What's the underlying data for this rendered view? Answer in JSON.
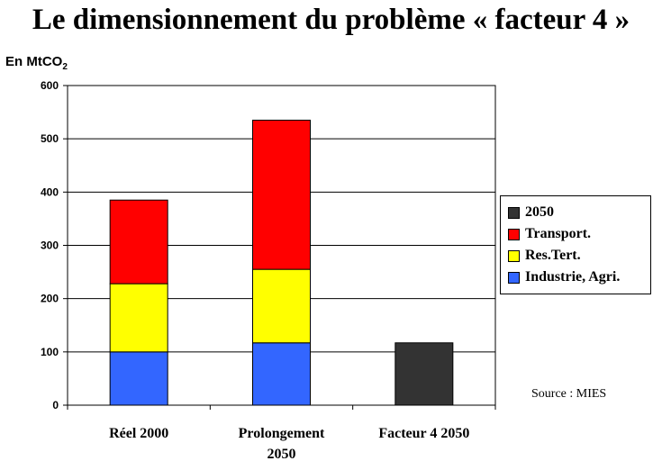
{
  "title": "Le dimensionnement du problème « facteur 4 »",
  "unit_label": "En MtCO",
  "unit_subscript": "2",
  "source": "Source : MIES",
  "colors": {
    "industrie": "#3366ff",
    "res_tert": "#ffff00",
    "transport": "#ff0000",
    "y2050": "#333333",
    "plot_bg": "#ffffff",
    "grid": "#000000"
  },
  "legend": [
    {
      "label": "2050",
      "color": "#333333"
    },
    {
      "label": "Transport.",
      "color": "#ff0000"
    },
    {
      "label": "Res.Tert.",
      "color": "#ffff00"
    },
    {
      "label": "Industrie, Agri.",
      "color": "#3366ff"
    }
  ],
  "chart_data": {
    "type": "bar",
    "stacked": true,
    "categories": [
      [
        "Réel 2000"
      ],
      [
        "Prolongement",
        "2050"
      ],
      [
        "Facteur 4 2050"
      ]
    ],
    "series": [
      {
        "name": "Industrie, Agri.",
        "color": "#3366ff",
        "values": [
          100,
          117,
          0
        ]
      },
      {
        "name": "Res.Tert.",
        "color": "#ffff00",
        "values": [
          128,
          138,
          0
        ]
      },
      {
        "name": "Transport.",
        "color": "#ff0000",
        "values": [
          157,
          280,
          0
        ]
      },
      {
        "name": "2050",
        "color": "#333333",
        "values": [
          0,
          0,
          117
        ]
      }
    ],
    "ylim": [
      0,
      600
    ],
    "yticks": [
      0,
      100,
      200,
      300,
      400,
      500,
      600
    ],
    "grid": true,
    "legend_position": "right"
  }
}
